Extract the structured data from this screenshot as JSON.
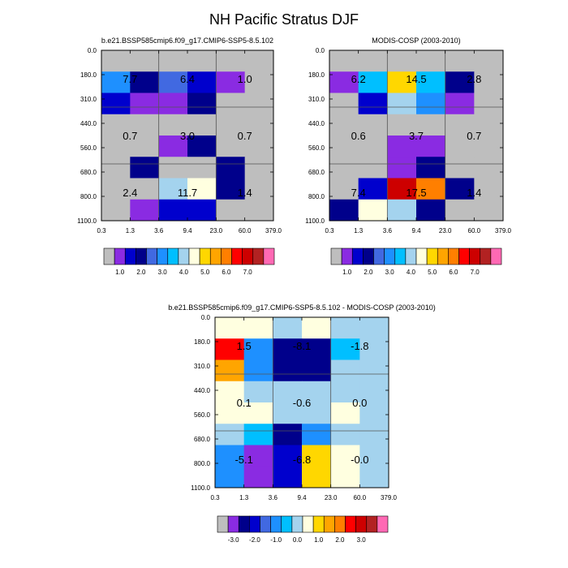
{
  "figure": {
    "title": "NH Pacific Stratus DJF"
  },
  "colors": {
    "abs_palette": [
      "#bebebe",
      "#8a2be2",
      "#0000cd",
      "#00008b",
      "#4169e1",
      "#1e90ff",
      "#00bfff",
      "#a4d3ee",
      "#ffffe0",
      "#ffd700",
      "#ffa500",
      "#ff7f00",
      "#ff0000",
      "#cd0000",
      "#b22222",
      "#ff69b4"
    ],
    "diff_palette": [
      "#bebebe",
      "#8a2be2",
      "#00008b",
      "#0000cd",
      "#4169e1",
      "#1e90ff",
      "#00bfff",
      "#a4d3ee",
      "#ffffe0",
      "#ffd700",
      "#ffa500",
      "#ff7f00",
      "#ff0000",
      "#cd0000",
      "#b22222",
      "#ff69b4"
    ]
  },
  "chart_data": [
    {
      "type": "heatmap",
      "title": "b.e21.BSSP585cmip6.f09_g17.CMIP6-SSP5-8.5.102",
      "x_ticks": [
        "0.3",
        "1.3",
        "3.6",
        "9.4",
        "23.0",
        "60.0",
        "379.0"
      ],
      "y_ticks": [
        "0.0",
        "180.0",
        "310.0",
        "440.0",
        "560.0",
        "680.0",
        "800.0",
        "1100.0"
      ],
      "cells": [
        [
          "#bebebe",
          "#bebebe",
          "#bebebe",
          "#bebebe",
          "#bebebe",
          "#bebebe"
        ],
        [
          "#1e90ff",
          "#00008b",
          "#4169e1",
          "#0000cd",
          "#8a2be2",
          "#bebebe"
        ],
        [
          "#0000cd",
          "#8a2be2",
          "#8a2be2",
          "#00008b",
          "#bebebe",
          "#bebebe"
        ],
        [
          "#bebebe",
          "#bebebe",
          "#bebebe",
          "#bebebe",
          "#bebebe",
          "#bebebe"
        ],
        [
          "#bebebe",
          "#bebebe",
          "#8a2be2",
          "#00008b",
          "#bebebe",
          "#bebebe"
        ],
        [
          "#bebebe",
          "#00008b",
          "#bebebe",
          "#bebebe",
          "#00008b",
          "#bebebe"
        ],
        [
          "#bebebe",
          "#bebebe",
          "#a4d3ee",
          "#ffffe0",
          "#00008b",
          "#bebebe"
        ],
        [
          "#bebebe",
          "#8a2be2",
          "#0000cd",
          "#0000cd",
          "#bebebe",
          "#bebebe"
        ]
      ],
      "labels": [
        {
          "col": 0,
          "row": 0,
          "text": "7.7"
        },
        {
          "col": 1,
          "row": 0,
          "text": "6.4"
        },
        {
          "col": 2,
          "row": 0,
          "text": "1.0"
        },
        {
          "col": 0,
          "row": 1,
          "text": "0.7"
        },
        {
          "col": 1,
          "row": 1,
          "text": "3.0"
        },
        {
          "col": 2,
          "row": 1,
          "text": "0.7"
        },
        {
          "col": 0,
          "row": 2,
          "text": "2.4"
        },
        {
          "col": 1,
          "row": 2,
          "text": "11.7"
        },
        {
          "col": 2,
          "row": 2,
          "text": "1.4"
        }
      ],
      "colorbar": {
        "labels": [
          "1.0",
          "2.0",
          "3.0",
          "4.0",
          "5.0",
          "6.0",
          "7.0"
        ]
      }
    },
    {
      "type": "heatmap",
      "title": "MODIS-COSP (2003-2010)",
      "x_ticks": [
        "0.3",
        "1.3",
        "3.6",
        "9.4",
        "23.0",
        "60.0",
        "379.0"
      ],
      "y_ticks": [
        "0.0",
        "180.0",
        "310.0",
        "440.0",
        "560.0",
        "680.0",
        "800.0",
        "1100.0"
      ],
      "cells": [
        [
          "#bebebe",
          "#bebebe",
          "#bebebe",
          "#bebebe",
          "#bebebe",
          "#bebebe"
        ],
        [
          "#8a2be2",
          "#00bfff",
          "#ffd700",
          "#00bfff",
          "#00008b",
          "#bebebe"
        ],
        [
          "#bebebe",
          "#0000cd",
          "#a4d3ee",
          "#1e90ff",
          "#8a2be2",
          "#bebebe"
        ],
        [
          "#bebebe",
          "#bebebe",
          "#bebebe",
          "#bebebe",
          "#bebebe",
          "#bebebe"
        ],
        [
          "#bebebe",
          "#bebebe",
          "#8a2be2",
          "#8a2be2",
          "#bebebe",
          "#bebebe"
        ],
        [
          "#bebebe",
          "#bebebe",
          "#8a2be2",
          "#00008b",
          "#bebebe",
          "#bebebe"
        ],
        [
          "#bebebe",
          "#0000cd",
          "#cd0000",
          "#ff7f00",
          "#00008b",
          "#bebebe"
        ],
        [
          "#00008b",
          "#ffffe0",
          "#a4d3ee",
          "#00008b",
          "#bebebe",
          "#bebebe"
        ]
      ],
      "labels": [
        {
          "col": 0,
          "row": 0,
          "text": "6.2"
        },
        {
          "col": 1,
          "row": 0,
          "text": "14.5"
        },
        {
          "col": 2,
          "row": 0,
          "text": "2.8"
        },
        {
          "col": 0,
          "row": 1,
          "text": "0.6"
        },
        {
          "col": 1,
          "row": 1,
          "text": "3.7"
        },
        {
          "col": 2,
          "row": 1,
          "text": "0.7"
        },
        {
          "col": 0,
          "row": 2,
          "text": "7.4"
        },
        {
          "col": 1,
          "row": 2,
          "text": "17.5"
        },
        {
          "col": 2,
          "row": 2,
          "text": "1.4"
        }
      ],
      "colorbar": {
        "labels": [
          "1.0",
          "2.0",
          "3.0",
          "4.0",
          "5.0",
          "6.0",
          "7.0"
        ]
      }
    },
    {
      "type": "heatmap",
      "title": "b.e21.BSSP585cmip6.f09_g17.CMIP6-SSP5-8.5.102 - MODIS-COSP (2003-2010)",
      "x_ticks": [
        "0.3",
        "1.3",
        "3.6",
        "9.4",
        "23.0",
        "60.0",
        "379.0"
      ],
      "y_ticks": [
        "0.0",
        "180.0",
        "310.0",
        "440.0",
        "560.0",
        "680.0",
        "800.0",
        "1100.0"
      ],
      "cells": [
        [
          "#ffffe0",
          "#ffffe0",
          "#a4d3ee",
          "#ffffe0",
          "#a4d3ee",
          "#a4d3ee"
        ],
        [
          "#ff0000",
          "#1e90ff",
          "#00008b",
          "#00008b",
          "#00bfff",
          "#a4d3ee"
        ],
        [
          "#ffa500",
          "#1e90ff",
          "#00008b",
          "#00008b",
          "#a4d3ee",
          "#a4d3ee"
        ],
        [
          "#ffffe0",
          "#a4d3ee",
          "#a4d3ee",
          "#a4d3ee",
          "#a4d3ee",
          "#a4d3ee"
        ],
        [
          "#ffffe0",
          "#ffffe0",
          "#a4d3ee",
          "#a4d3ee",
          "#ffffe0",
          "#a4d3ee"
        ],
        [
          "#a4d3ee",
          "#00bfff",
          "#00008b",
          "#1e90ff",
          "#a4d3ee",
          "#a4d3ee"
        ],
        [
          "#1e90ff",
          "#8a2be2",
          "#0000cd",
          "#ffd700",
          "#ffffe0",
          "#a4d3ee"
        ],
        [
          "#1e90ff",
          "#8a2be2",
          "#0000cd",
          "#ffd700",
          "#ffffe0",
          "#a4d3ee"
        ]
      ],
      "labels": [
        {
          "col": 0,
          "row": 0,
          "text": "1.5"
        },
        {
          "col": 1,
          "row": 0,
          "text": "-8.1"
        },
        {
          "col": 2,
          "row": 0,
          "text": "-1.8"
        },
        {
          "col": 0,
          "row": 1,
          "text": "0.1"
        },
        {
          "col": 1,
          "row": 1,
          "text": "-0.6"
        },
        {
          "col": 2,
          "row": 1,
          "text": "0.0"
        },
        {
          "col": 0,
          "row": 2,
          "text": "-5.1"
        },
        {
          "col": 1,
          "row": 2,
          "text": "-6.8"
        },
        {
          "col": 2,
          "row": 2,
          "text": "-0.0"
        }
      ],
      "colorbar": {
        "labels": [
          "-3.0",
          "-2.0",
          "-1.0",
          "0.0",
          "1.0",
          "2.0",
          "3.0"
        ]
      }
    }
  ]
}
